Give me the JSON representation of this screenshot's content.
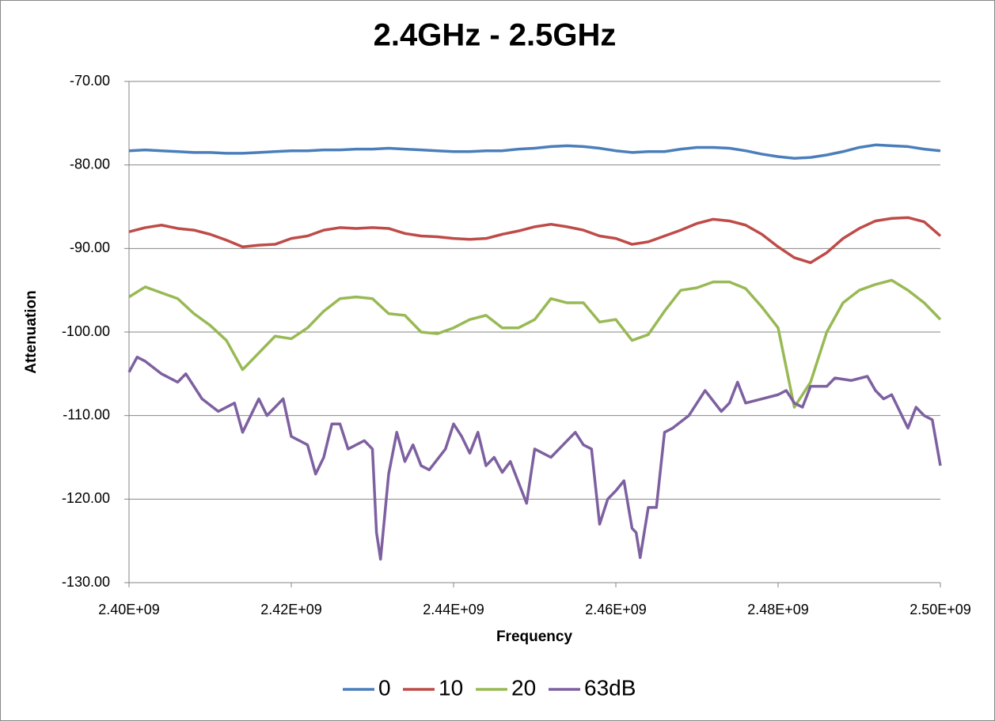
{
  "chart_data": {
    "type": "line",
    "title": "2.4GHz - 2.5GHz",
    "x_label": "Frequency",
    "y_label": "Attenuation",
    "xlim": [
      2400000000,
      2500000000
    ],
    "xticks": [
      {
        "value": 2400000000,
        "label": "2.40E+09"
      },
      {
        "value": 2420000000,
        "label": "2.42E+09"
      },
      {
        "value": 2440000000,
        "label": "2.44E+09"
      },
      {
        "value": 2460000000,
        "label": "2.46E+09"
      },
      {
        "value": 2480000000,
        "label": "2.48E+09"
      },
      {
        "value": 2500000000,
        "label": "2.50E+09"
      }
    ],
    "ylim": [
      -130,
      -70
    ],
    "yticks": [
      {
        "value": -70,
        "label": "-70.00"
      },
      {
        "value": -80,
        "label": "-80.00"
      },
      {
        "value": -90,
        "label": "-90.00"
      },
      {
        "value": -100,
        "label": "-100.00"
      },
      {
        "value": -110,
        "label": "-110.00"
      },
      {
        "value": -120,
        "label": "-120.00"
      },
      {
        "value": -130,
        "label": "-130.00"
      }
    ],
    "grid": true,
    "legend": "bottom",
    "x": [
      2400000000,
      2402000000,
      2404000000,
      2406000000,
      2408000000,
      2410000000,
      2412000000,
      2414000000,
      2416000000,
      2418000000,
      2420000000,
      2422000000,
      2424000000,
      2426000000,
      2428000000,
      2430000000,
      2432000000,
      2434000000,
      2436000000,
      2438000000,
      2440000000,
      2442000000,
      2444000000,
      2446000000,
      2448000000,
      2450000000,
      2452000000,
      2454000000,
      2456000000,
      2458000000,
      2460000000,
      2462000000,
      2464000000,
      2466000000,
      2468000000,
      2470000000,
      2472000000,
      2474000000,
      2476000000,
      2478000000,
      2480000000,
      2482000000,
      2484000000,
      2486000000,
      2488000000,
      2490000000,
      2492000000,
      2494000000,
      2496000000,
      2498000000,
      2500000000
    ],
    "series": [
      {
        "name": "0",
        "color": "#4a7ebb",
        "values": [
          -78.3,
          -78.2,
          -78.3,
          -78.4,
          -78.5,
          -78.5,
          -78.6,
          -78.6,
          -78.5,
          -78.4,
          -78.3,
          -78.3,
          -78.2,
          -78.2,
          -78.1,
          -78.1,
          -78.0,
          -78.1,
          -78.2,
          -78.3,
          -78.4,
          -78.4,
          -78.3,
          -78.3,
          -78.1,
          -78.0,
          -77.8,
          -77.7,
          -77.8,
          -78.0,
          -78.3,
          -78.5,
          -78.4,
          -78.4,
          -78.1,
          -77.9,
          -77.9,
          -78.0,
          -78.3,
          -78.7,
          -79.0,
          -79.2,
          -79.1,
          -78.8,
          -78.4,
          -77.9,
          -77.6,
          -77.7,
          -77.8,
          -78.1,
          -78.3
        ]
      },
      {
        "name": "10",
        "color": "#be4b48",
        "values": [
          -88.0,
          -87.5,
          -87.2,
          -87.6,
          -87.8,
          -88.3,
          -89.0,
          -89.8,
          -89.6,
          -89.5,
          -88.8,
          -88.5,
          -87.8,
          -87.5,
          -87.6,
          -87.5,
          -87.6,
          -88.2,
          -88.5,
          -88.6,
          -88.8,
          -88.9,
          -88.8,
          -88.3,
          -87.9,
          -87.4,
          -87.1,
          -87.4,
          -87.8,
          -88.5,
          -88.8,
          -89.5,
          -89.2,
          -88.5,
          -87.8,
          -87.0,
          -86.5,
          -86.7,
          -87.2,
          -88.3,
          -89.8,
          -91.1,
          -91.7,
          -90.5,
          -88.8,
          -87.6,
          -86.7,
          -86.4,
          -86.3,
          -86.8,
          -88.5
        ]
      },
      {
        "name": "20",
        "color": "#98b954",
        "values": [
          -95.8,
          -94.6,
          -95.3,
          -96.0,
          -97.8,
          -99.2,
          -101.0,
          -104.5,
          -102.5,
          -100.5,
          -100.8,
          -99.5,
          -97.5,
          -96.0,
          -95.8,
          -96.0,
          -97.8,
          -98.0,
          -100.0,
          -100.2,
          -99.5,
          -98.5,
          -98.0,
          -99.5,
          -99.5,
          -98.5,
          -96.0,
          -96.5,
          -96.5,
          -98.8,
          -98.5,
          -101.0,
          -100.3,
          -97.5,
          -95.0,
          -94.7,
          -94.0,
          -94.0,
          -94.8,
          -97.0,
          -99.5,
          -109.0,
          -106.0,
          -100.0,
          -96.5,
          -95.0,
          -94.3,
          -93.8,
          -95.0,
          -96.5,
          -98.5
        ]
      },
      {
        "name": "63dB",
        "color": "#7d60a0",
        "x": [
          2400000000,
          2401000000,
          2402000000,
          2404000000,
          2406000000,
          2407000000,
          2409000000,
          2411000000,
          2413000000,
          2414000000,
          2416000000,
          2417000000,
          2419000000,
          2420000000,
          2422000000,
          2423000000,
          2424000000,
          2425000000,
          2426000000,
          2427000000,
          2429000000,
          2430000000,
          2430500000,
          2431000000,
          2432000000,
          2433000000,
          2434000000,
          2435000000,
          2436000000,
          2437000000,
          2439000000,
          2440000000,
          2441000000,
          2442000000,
          2443000000,
          2444000000,
          2445000000,
          2446000000,
          2447000000,
          2449000000,
          2450000000,
          2452000000,
          2453000000,
          2455000000,
          2456000000,
          2457000000,
          2458000000,
          2459000000,
          2460000000,
          2461000000,
          2462000000,
          2462500000,
          2463000000,
          2464000000,
          2465000000,
          2466000000,
          2467000000,
          2469000000,
          2470000000,
          2471000000,
          2473000000,
          2474000000,
          2475000000,
          2476000000,
          2478000000,
          2480000000,
          2481000000,
          2482000000,
          2483000000,
          2484000000,
          2486000000,
          2487000000,
          2489000000,
          2491000000,
          2492000000,
          2493000000,
          2494000000,
          2496000000,
          2497000000,
          2498000000,
          2499000000,
          2500000000
        ],
        "values": [
          -104.8,
          -103.0,
          -103.5,
          -105.0,
          -106.0,
          -105.0,
          -108.0,
          -109.5,
          -108.5,
          -112.0,
          -108.0,
          -110.0,
          -108.0,
          -112.5,
          -113.5,
          -117.0,
          -115.0,
          -111.0,
          -111.0,
          -114.0,
          -113.0,
          -114.0,
          -124.0,
          -127.2,
          -117.0,
          -112.0,
          -115.5,
          -113.5,
          -116.0,
          -116.5,
          -114.0,
          -111.0,
          -112.5,
          -114.5,
          -112.0,
          -116.0,
          -115.0,
          -116.8,
          -115.5,
          -120.5,
          -114.0,
          -115.0,
          -114.0,
          -112.0,
          -113.5,
          -114.0,
          -123.0,
          -120.0,
          -119.0,
          -117.8,
          -123.5,
          -124.0,
          -127.0,
          -121.0,
          -121.0,
          -112.0,
          -111.5,
          -110.0,
          -108.5,
          -107.0,
          -109.5,
          -108.5,
          -106.0,
          -108.5,
          -108.0,
          -107.5,
          -107.0,
          -108.5,
          -109.0,
          -106.5,
          -106.5,
          -105.5,
          -105.8,
          -105.3,
          -107.0,
          -108.0,
          -107.5,
          -111.5,
          -109.0,
          -110.0,
          -110.5,
          -116.0
        ]
      }
    ]
  }
}
